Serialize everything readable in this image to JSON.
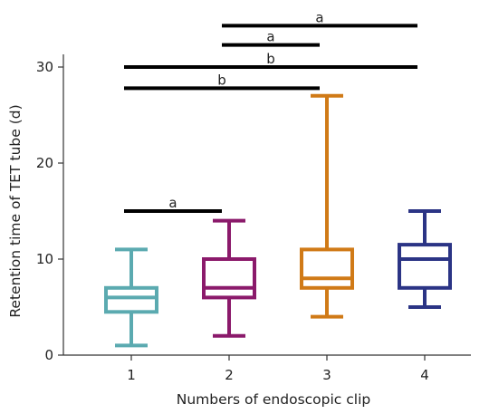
{
  "chart_data": {
    "type": "boxplot",
    "title": "",
    "xlabel": "Numbers of endoscopic clip",
    "ylabel": "Retention time of TET tube (d)",
    "ylim": [
      0,
      30
    ],
    "yticks": [
      0,
      10,
      20,
      30
    ],
    "grid": false,
    "categories": [
      "1",
      "2",
      "3",
      "4"
    ],
    "boxes": [
      {
        "category": "1",
        "min": 1,
        "q1": 4.5,
        "median": 6,
        "q3": 7,
        "max": 11,
        "color": "#5BAAB0"
      },
      {
        "category": "2",
        "min": 2,
        "q1": 6,
        "median": 7,
        "q3": 10,
        "max": 14,
        "color": "#8B1A6B"
      },
      {
        "category": "3",
        "min": 4,
        "q1": 7,
        "median": 8,
        "q3": 11,
        "max": 27,
        "color": "#D07A17"
      },
      {
        "category": "4",
        "min": 5,
        "q1": 7,
        "median": 10,
        "q3": 11.5,
        "max": 15,
        "color": "#2B3485"
      }
    ],
    "significance": [
      {
        "from": "1",
        "to": "2",
        "y": 15,
        "label": "a"
      },
      {
        "from": "1",
        "to": "3",
        "y": 27.8,
        "label": "b"
      },
      {
        "from": "1",
        "to": "4",
        "y": 30,
        "label": "b"
      },
      {
        "from": "2",
        "to": "3",
        "y": 32.3,
        "label": "a"
      },
      {
        "from": "2",
        "to": "4",
        "y": 34.3,
        "label": "a"
      }
    ]
  }
}
